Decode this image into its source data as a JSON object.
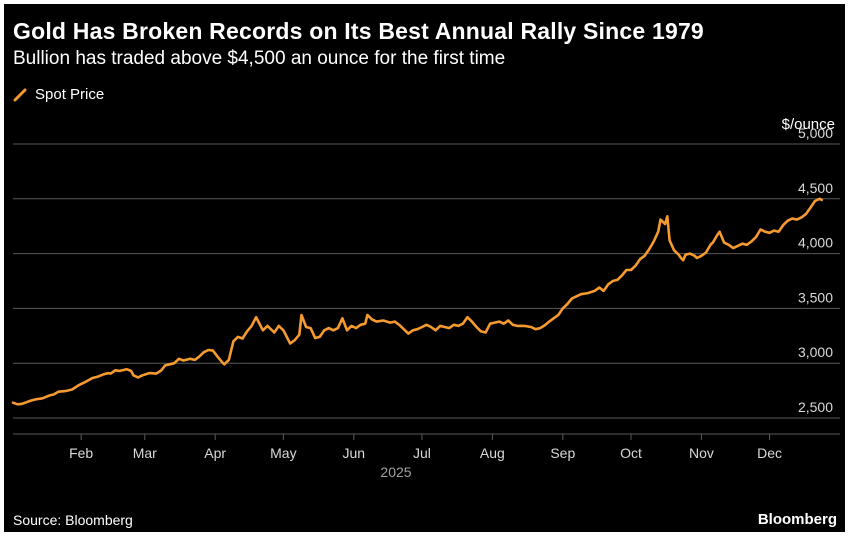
{
  "title": "Gold Has Broken Records on Its Best Annual Rally Since 1979",
  "subtitle": "Bullion has traded above $4,500 an ounce for the first time",
  "source": "Source: Bloomberg",
  "brand": "Bloomberg",
  "colors": {
    "background": "#000000",
    "line": "#f59a2f",
    "grid": "#5a5a5a",
    "text": "#ffffff",
    "axis_text": "#d9d9d9",
    "year_text": "#a0a0a0"
  },
  "chart_data": {
    "type": "line",
    "title": "Gold Has Broken Records on Its Best Annual Rally Since 1979",
    "ylabel": "$/ounce",
    "xlabel": "2025",
    "ylim": [
      2500,
      5000
    ],
    "xlim": [
      2,
      366
    ],
    "grid": true,
    "legend": "top-left",
    "y_ticks": [
      {
        "value": 2500,
        "label": "2,500"
      },
      {
        "value": 3000,
        "label": "3,000"
      },
      {
        "value": 3500,
        "label": "3,500"
      },
      {
        "value": 4000,
        "label": "4,000"
      },
      {
        "value": 4500,
        "label": "4,500"
      },
      {
        "value": 5000,
        "label": "5,000"
      }
    ],
    "x_ticks": [
      {
        "day": 32,
        "label": "Feb"
      },
      {
        "day": 60,
        "label": "Mar"
      },
      {
        "day": 91,
        "label": "Apr"
      },
      {
        "day": 121,
        "label": "May"
      },
      {
        "day": 152,
        "label": "Jun"
      },
      {
        "day": 182,
        "label": "Jul"
      },
      {
        "day": 213,
        "label": "Aug"
      },
      {
        "day": 244,
        "label": "Sep"
      },
      {
        "day": 274,
        "label": "Oct"
      },
      {
        "day": 305,
        "label": "Nov"
      },
      {
        "day": 335,
        "label": "Dec"
      }
    ],
    "series": [
      {
        "name": "Spot Price",
        "x_unit": "day of year 2025",
        "points": [
          [
            2,
            2640
          ],
          [
            4,
            2625
          ],
          [
            6,
            2630
          ],
          [
            10,
            2660
          ],
          [
            12,
            2670
          ],
          [
            15,
            2680
          ],
          [
            18,
            2705
          ],
          [
            20,
            2715
          ],
          [
            22,
            2740
          ],
          [
            25,
            2745
          ],
          [
            28,
            2760
          ],
          [
            31,
            2800
          ],
          [
            34,
            2830
          ],
          [
            37,
            2865
          ],
          [
            39,
            2875
          ],
          [
            42,
            2900
          ],
          [
            44,
            2910
          ],
          [
            45,
            2905
          ],
          [
            47,
            2935
          ],
          [
            49,
            2930
          ],
          [
            52,
            2945
          ],
          [
            54,
            2930
          ],
          [
            55,
            2890
          ],
          [
            57,
            2870
          ],
          [
            59,
            2890
          ],
          [
            62,
            2910
          ],
          [
            65,
            2905
          ],
          [
            67,
            2930
          ],
          [
            69,
            2980
          ],
          [
            71,
            2990
          ],
          [
            73,
            3000
          ],
          [
            75,
            3040
          ],
          [
            77,
            3025
          ],
          [
            80,
            3040
          ],
          [
            82,
            3030
          ],
          [
            84,
            3060
          ],
          [
            86,
            3100
          ],
          [
            88,
            3120
          ],
          [
            90,
            3115
          ],
          [
            92,
            3060
          ],
          [
            94,
            3010
          ],
          [
            95,
            2990
          ],
          [
            97,
            3030
          ],
          [
            99,
            3200
          ],
          [
            101,
            3240
          ],
          [
            103,
            3225
          ],
          [
            105,
            3290
          ],
          [
            107,
            3340
          ],
          [
            109,
            3420
          ],
          [
            110,
            3380
          ],
          [
            112,
            3300
          ],
          [
            114,
            3340
          ],
          [
            117,
            3280
          ],
          [
            119,
            3340
          ],
          [
            121,
            3300
          ],
          [
            123,
            3220
          ],
          [
            124,
            3180
          ],
          [
            126,
            3210
          ],
          [
            128,
            3260
          ],
          [
            129,
            3440
          ],
          [
            131,
            3330
          ],
          [
            133,
            3320
          ],
          [
            135,
            3230
          ],
          [
            137,
            3240
          ],
          [
            139,
            3300
          ],
          [
            141,
            3320
          ],
          [
            143,
            3300
          ],
          [
            145,
            3320
          ],
          [
            147,
            3410
          ],
          [
            149,
            3300
          ],
          [
            151,
            3340
          ],
          [
            153,
            3320
          ],
          [
            155,
            3350
          ],
          [
            157,
            3360
          ],
          [
            158,
            3440
          ],
          [
            160,
            3400
          ],
          [
            162,
            3380
          ],
          [
            165,
            3390
          ],
          [
            168,
            3370
          ],
          [
            170,
            3380
          ],
          [
            172,
            3350
          ],
          [
            174,
            3310
          ],
          [
            176,
            3270
          ],
          [
            178,
            3300
          ],
          [
            180,
            3310
          ],
          [
            182,
            3330
          ],
          [
            184,
            3350
          ],
          [
            186,
            3330
          ],
          [
            188,
            3300
          ],
          [
            190,
            3340
          ],
          [
            192,
            3330
          ],
          [
            194,
            3320
          ],
          [
            196,
            3350
          ],
          [
            198,
            3340
          ],
          [
            200,
            3360
          ],
          [
            202,
            3420
          ],
          [
            204,
            3380
          ],
          [
            206,
            3330
          ],
          [
            208,
            3290
          ],
          [
            210,
            3280
          ],
          [
            212,
            3360
          ],
          [
            214,
            3370
          ],
          [
            216,
            3380
          ],
          [
            218,
            3360
          ],
          [
            220,
            3390
          ],
          [
            222,
            3350
          ],
          [
            224,
            3340
          ],
          [
            227,
            3340
          ],
          [
            230,
            3330
          ],
          [
            232,
            3310
          ],
          [
            234,
            3320
          ],
          [
            236,
            3345
          ],
          [
            238,
            3380
          ],
          [
            240,
            3410
          ],
          [
            242,
            3440
          ],
          [
            244,
            3500
          ],
          [
            246,
            3540
          ],
          [
            248,
            3590
          ],
          [
            250,
            3610
          ],
          [
            252,
            3630
          ],
          [
            255,
            3640
          ],
          [
            258,
            3660
          ],
          [
            260,
            3690
          ],
          [
            262,
            3660
          ],
          [
            264,
            3720
          ],
          [
            266,
            3750
          ],
          [
            268,
            3760
          ],
          [
            270,
            3800
          ],
          [
            272,
            3850
          ],
          [
            274,
            3850
          ],
          [
            276,
            3890
          ],
          [
            278,
            3950
          ],
          [
            280,
            3980
          ],
          [
            282,
            4040
          ],
          [
            284,
            4110
          ],
          [
            286,
            4200
          ],
          [
            287,
            4310
          ],
          [
            289,
            4270
          ],
          [
            290,
            4340
          ],
          [
            291,
            4120
          ],
          [
            293,
            4030
          ],
          [
            295,
            3990
          ],
          [
            296,
            3960
          ],
          [
            297,
            3940
          ],
          [
            298,
            3990
          ],
          [
            300,
            4000
          ],
          [
            302,
            3980
          ],
          [
            303,
            3960
          ],
          [
            305,
            3980
          ],
          [
            307,
            4010
          ],
          [
            309,
            4080
          ],
          [
            310,
            4100
          ],
          [
            312,
            4170
          ],
          [
            313,
            4200
          ],
          [
            315,
            4100
          ],
          [
            317,
            4080
          ],
          [
            319,
            4050
          ],
          [
            321,
            4070
          ],
          [
            323,
            4090
          ],
          [
            325,
            4080
          ],
          [
            327,
            4110
          ],
          [
            329,
            4150
          ],
          [
            331,
            4220
          ],
          [
            333,
            4200
          ],
          [
            335,
            4190
          ],
          [
            337,
            4210
          ],
          [
            339,
            4200
          ],
          [
            341,
            4260
          ],
          [
            343,
            4300
          ],
          [
            345,
            4320
          ],
          [
            347,
            4310
          ],
          [
            349,
            4330
          ],
          [
            351,
            4360
          ],
          [
            353,
            4420
          ],
          [
            355,
            4480
          ],
          [
            357,
            4500
          ],
          [
            358,
            4490
          ]
        ]
      }
    ]
  }
}
